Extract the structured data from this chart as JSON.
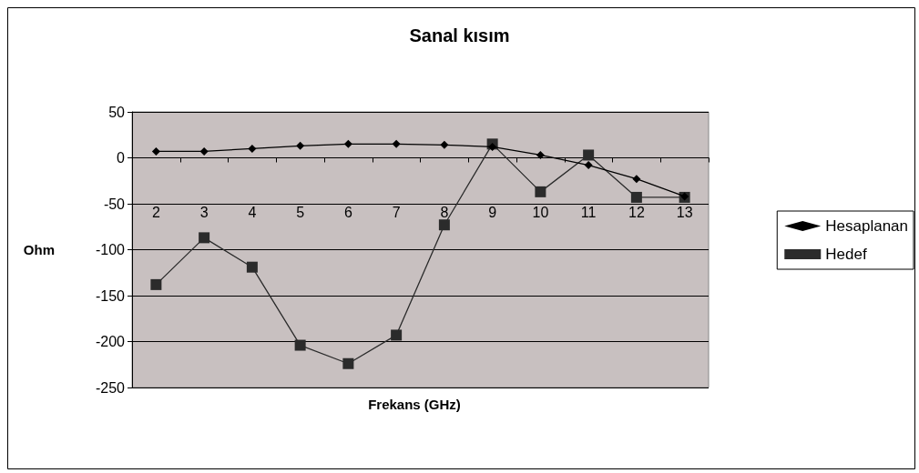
{
  "chart_data": {
    "type": "line",
    "title": "Sanal kısım",
    "xlabel": "Frekans (GHz)",
    "ylabel": "Ohm",
    "categories": [
      "2",
      "3",
      "4",
      "5",
      "6",
      "7",
      "8",
      "9",
      "10",
      "11",
      "12",
      "13"
    ],
    "series": [
      {
        "name": "Hesaplanan",
        "color": "#000000",
        "marker": "diamond",
        "values": [
          7,
          7,
          10,
          13,
          15,
          15,
          14,
          12,
          3,
          -8,
          -23,
          -42
        ]
      },
      {
        "name": "Hedef",
        "color": "#2b2b2b",
        "marker": "square",
        "values": [
          -138,
          -87,
          -119,
          -204,
          -224,
          -193,
          -73,
          15,
          -37,
          3,
          -43,
          -43
        ]
      }
    ],
    "ylim": [
      -250,
      50
    ],
    "yticks": [
      -250,
      -200,
      -150,
      -100,
      -50,
      0,
      50
    ],
    "grid": "y",
    "legend": "right",
    "line_style": "solid"
  }
}
